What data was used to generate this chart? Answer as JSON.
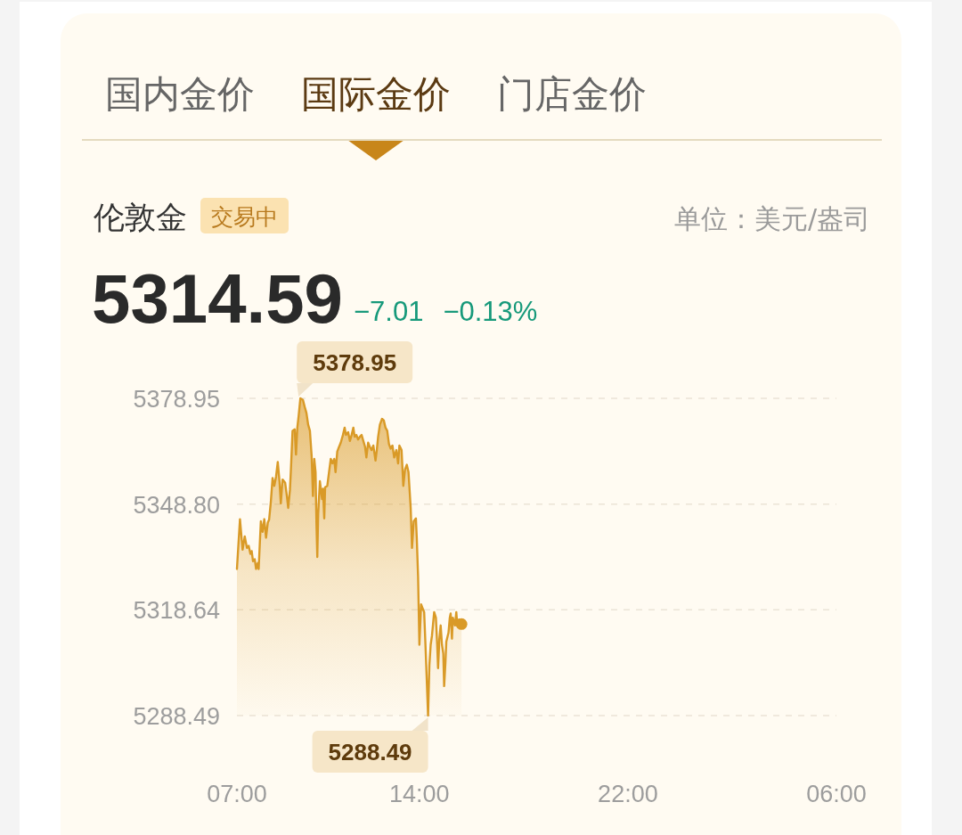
{
  "chart_data": {
    "type": "area",
    "title": "伦敦金",
    "annotations": [
      "国内金价",
      "国际金价",
      "门店金价",
      "交易中",
      "单位：美元/盎司",
      "5314.59",
      "−7.01",
      "−0.13%",
      {
        "text": "5378.95",
        "x": "--01-29T09:26",
        "y": 5378.95
      },
      {
        "text": "5288.49",
        "x": "--01-29T14:20",
        "y": 5288.49
      }
    ],
    "xlim": [
      "--01-29T07:00",
      "--01-30T06:00"
    ],
    "xticks": [
      {
        "value": "--01-29T07:00",
        "label": "07:00"
      },
      {
        "value": "--01-29T14:00",
        "label": "14:00"
      },
      {
        "value": "--01-29T22:00",
        "label": "22:00"
      },
      {
        "value": "--01-30T06:00",
        "label": "06:00"
      }
    ],
    "ylim": [
      5288.49,
      5378.95
    ],
    "yticks": [
      5288.49,
      5318.64,
      {
        "value": 5348.8,
        "label": "5348.80"
      },
      5378.95
    ],
    "grid": "y",
    "series": [
      {
        "color": "#d99a27",
        "x": [
          "--01-29T07:00",
          "--01-29T07:07",
          "--01-29T07:13",
          "--01-29T07:18",
          "--01-29T07:23",
          "--01-29T07:27",
          "--01-29T07:31",
          "--01-29T07:34",
          "--01-29T07:37",
          "--01-29T07:41",
          "--01-29T07:44",
          "--01-29T07:48",
          "--01-29T07:50",
          "--01-29T07:55",
          "--01-29T07:59",
          "--01-29T08:03",
          "--01-29T08:07",
          "--01-29T08:11",
          "--01-29T08:14",
          "--01-29T08:18",
          "--01-29T08:22",
          "--01-29T08:26",
          "--01-29T08:30",
          "--01-29T08:34",
          "--01-29T08:38",
          "--01-29T08:41",
          "--01-29T08:45",
          "--01-29T08:51",
          "--01-29T08:55",
          "--01-29T08:58",
          "--01-29T09:02",
          "--01-29T09:04",
          "--01-29T09:08",
          "--01-29T09:13",
          "--01-29T09:16",
          "--01-29T09:19",
          "--01-29T09:22",
          "--01-29T09:26",
          "--01-29T09:32",
          "--01-29T09:36",
          "--01-29T09:40",
          "--01-29T09:44",
          "--01-29T09:48",
          "--01-29T09:52",
          "--01-29T09:55",
          "--01-29T09:58",
          "--01-29T10:01",
          "--01-29T10:03",
          "--01-29T10:05",
          "--01-29T10:07",
          "--01-29T10:11",
          "--01-29T10:16",
          "--01-29T10:18",
          "--01-29T10:21",
          "--01-29T10:23",
          "--01-29T10:28",
          "--01-29T10:32",
          "--01-29T10:36",
          "--01-29T10:40",
          "--01-29T10:44",
          "--01-29T10:47",
          "--01-29T10:51",
          "--01-29T10:55",
          "--01-29T10:59",
          "--01-29T11:04",
          "--01-29T11:08",
          "--01-29T11:11",
          "--01-29T11:16",
          "--01-29T11:20",
          "--01-29T11:24",
          "--01-29T11:28",
          "--01-29T11:31",
          "--01-29T11:35",
          "--01-29T11:39",
          "--01-29T11:43",
          "--01-29T11:47",
          "--01-29T11:51",
          "--01-29T11:55",
          "--01-29T11:58",
          "--01-29T12:02",
          "--01-29T12:06",
          "--01-29T12:10",
          "--01-29T12:14",
          "--01-29T12:19",
          "--01-29T12:22",
          "--01-29T12:25",
          "--01-29T12:29",
          "--01-29T12:34",
          "--01-29T12:38",
          "--01-29T12:42",
          "--01-29T12:46",
          "--01-29T12:50",
          "--01-29T12:54",
          "--01-29T12:58",
          "--01-29T13:02",
          "--01-29T13:07",
          "--01-29T13:11",
          "--01-29T13:14",
          "--01-29T13:19",
          "--01-29T13:23",
          "--01-29T13:27",
          "--01-29T13:31",
          "--01-29T13:35",
          "--01-29T13:40",
          "--01-29T13:43",
          "--01-29T13:47",
          "--01-29T13:52",
          "--01-29T13:54",
          "--01-29T13:57",
          "--01-29T14:00",
          "--01-29T14:04",
          "--01-29T14:08",
          "--01-29T14:11",
          "--01-29T14:14",
          "--01-29T14:17",
          "--01-29T14:20",
          "--01-29T14:23",
          "--01-29T14:26",
          "--01-29T14:29",
          "--01-29T14:34",
          "--01-29T14:38",
          "--01-29T14:41",
          "--01-29T14:43",
          "--01-29T14:46",
          "--01-29T14:49",
          "--01-29T14:52",
          "--01-29T14:55",
          "--01-29T14:57",
          "--01-29T15:00",
          "--01-29T15:02",
          "--01-29T15:07",
          "--01-29T15:10",
          "--01-29T15:12",
          "--01-29T15:15",
          "--01-29T15:17",
          "--01-29T15:22",
          "--01-29T15:25",
          "--01-29T15:27",
          "--01-29T15:31",
          "--01-29T15:35",
          "--01-29T15:37"
        ],
        "values": [
          5330.3,
          5344.5,
          5335.8,
          5339.6,
          5336.3,
          5336.9,
          5334.6,
          5335.4,
          5332.5,
          5333.1,
          5330.3,
          5332.0,
          5330.3,
          5343.9,
          5340.9,
          5344.5,
          5339.2,
          5343.5,
          5344.3,
          5349.4,
          5356.2,
          5354.0,
          5356.6,
          5360.8,
          5355.3,
          5349.0,
          5355.8,
          5354.9,
          5351.1,
          5347.7,
          5352.8,
          5357.9,
          5369.7,
          5370.1,
          5362.9,
          5370.6,
          5373.9,
          5378.95,
          5378.5,
          5376.5,
          5374.8,
          5371.4,
          5369.7,
          5362.5,
          5351.1,
          5361.7,
          5357.9,
          5343.5,
          5333.7,
          5346.0,
          5355.3,
          5350.2,
          5353.2,
          5344.7,
          5353.6,
          5354.0,
          5357.9,
          5361.7,
          5360.4,
          5361.7,
          5357.9,
          5363.8,
          5365.1,
          5366.3,
          5368.5,
          5370.6,
          5368.5,
          5369.3,
          5366.8,
          5368.5,
          5370.6,
          5368.0,
          5368.5,
          5367.2,
          5368.0,
          5368.5,
          5366.8,
          5365.1,
          5362.1,
          5366.3,
          5365.1,
          5364.2,
          5365.5,
          5361.2,
          5364.2,
          5368.0,
          5371.4,
          5373.1,
          5372.7,
          5370.6,
          5369.7,
          5365.9,
          5364.6,
          5365.5,
          5362.1,
          5364.2,
          5360.4,
          5365.5,
          5364.2,
          5354.0,
          5358.7,
          5360.0,
          5357.9,
          5347.7,
          5336.3,
          5343.9,
          5344.7,
          5339.2,
          5328.2,
          5308.7,
          5320.2,
          5318.9,
          5318.0,
          5308.7,
          5298.6,
          5288.49,
          5302.8,
          5308.7,
          5311.3,
          5318.0,
          5316.4,
          5308.7,
          5302.0,
          5310.4,
          5314.2,
          5308.7,
          5306.2,
          5296.9,
          5303.7,
          5309.6,
          5312.1,
          5316.4,
          5317.6,
          5310.4,
          5316.4,
          5314.2,
          5318.0,
          5314.7,
          5315.9,
          5314.7,
          5314.59
        ]
      },
      {
        "type": "scatter",
        "color": "#d99a27",
        "marker": "circle",
        "x": [
          "--01-29T15:37"
        ],
        "values": [
          5314.59
        ]
      }
    ]
  }
}
